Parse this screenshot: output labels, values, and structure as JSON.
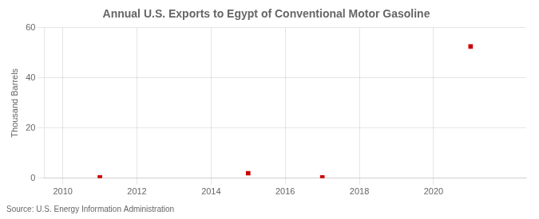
{
  "chart_data": {
    "type": "scatter",
    "title": "Annual U.S. Exports to Egypt of Conventional Motor Gasoline",
    "ylabel": "Thousand Barrels",
    "annotations": [
      "Source: U.S. Energy Information Administration"
    ],
    "x": [
      2011,
      2015,
      2017,
      2021
    ],
    "values": [
      0.3,
      2.0,
      0.3,
      52.5
    ],
    "color": "#cc0000",
    "marker": "square",
    "xlim": [
      2009.5,
      2022.5
    ],
    "xticks": [
      2010,
      2012,
      2014,
      2016,
      2018,
      2020
    ],
    "ylim": [
      0,
      60
    ],
    "yticks": [
      0,
      20,
      40,
      60
    ],
    "grid": true
  }
}
